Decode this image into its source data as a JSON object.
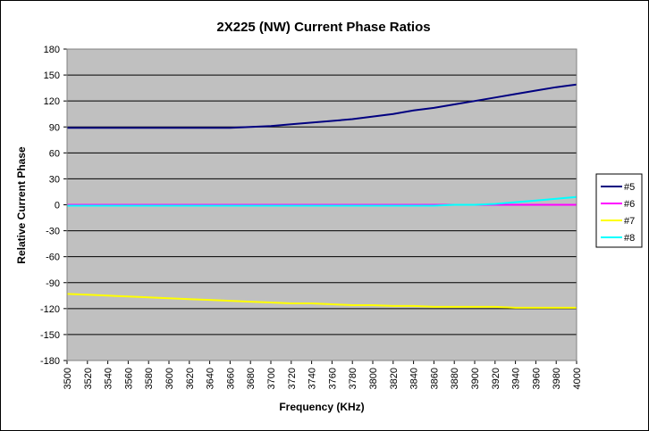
{
  "chart_data": {
    "type": "line",
    "title": "2X225 (NW) Current Phase Ratios",
    "xlabel": "Frequency (KHz)",
    "ylabel": "Relative Current Phase",
    "x": [
      3500,
      3520,
      3540,
      3560,
      3580,
      3600,
      3620,
      3640,
      3660,
      3680,
      3700,
      3720,
      3740,
      3760,
      3780,
      3800,
      3820,
      3840,
      3860,
      3880,
      3900,
      3920,
      3940,
      3960,
      3980,
      4000
    ],
    "ylim": [
      -180,
      180
    ],
    "yticks": [
      180,
      150,
      120,
      90,
      60,
      30,
      0,
      -30,
      -60,
      -90,
      -120,
      -150,
      -180
    ],
    "xticks": [
      "3500",
      "3520",
      "3540",
      "3560",
      "3580",
      "3600",
      "3620",
      "3640",
      "3660",
      "3680",
      "3700",
      "3720",
      "3740",
      "3760",
      "3780",
      "3800",
      "3820",
      "3840",
      "3860",
      "3880",
      "3900",
      "3920",
      "3940",
      "3960",
      "3980",
      "4000"
    ],
    "grid": "horizontal",
    "legend_position": "right",
    "plot_background": "#c0c0c0",
    "series": [
      {
        "name": "#5",
        "color": "#000080",
        "values": [
          89,
          89,
          89,
          89,
          89,
          89,
          89,
          89,
          89,
          90,
          91,
          93,
          95,
          97,
          99,
          102,
          105,
          109,
          112,
          116,
          120,
          124,
          128,
          132,
          136,
          139
        ]
      },
      {
        "name": "#6",
        "color": "#ff00ff",
        "values": [
          0,
          0,
          0,
          0,
          0,
          0,
          0,
          0,
          0,
          0,
          0,
          0,
          0,
          0,
          0,
          0,
          0,
          0,
          0,
          0,
          0,
          0,
          0,
          0,
          0,
          0
        ]
      },
      {
        "name": "#7",
        "color": "#ffff00",
        "values": [
          -103,
          -104,
          -105,
          -106,
          -107,
          -108,
          -109,
          -110,
          -111,
          -112,
          -113,
          -114,
          -114,
          -115,
          -116,
          -116,
          -117,
          -117,
          -118,
          -118,
          -118,
          -118,
          -119,
          -119,
          -119,
          -119
        ]
      },
      {
        "name": "#8",
        "color": "#00ffff",
        "values": [
          -1,
          -1,
          -1,
          -1,
          -1,
          -1,
          -1,
          -1,
          -1,
          -1,
          -1,
          -1,
          -1,
          -1,
          -1,
          -1,
          -1,
          -1,
          -1,
          0,
          0,
          1,
          3,
          5,
          7,
          9
        ]
      }
    ]
  }
}
